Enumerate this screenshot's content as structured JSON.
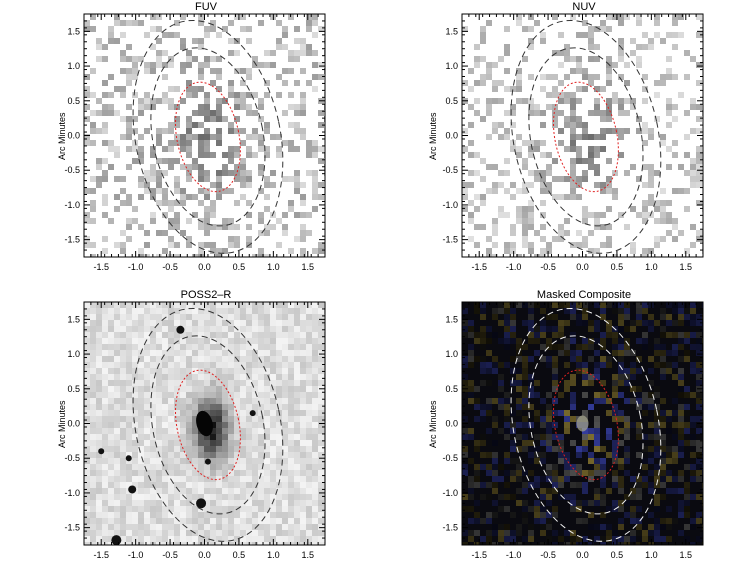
{
  "figure": {
    "panels": [
      {
        "id": "fuv",
        "title": "FUV",
        "ylabel": "Arc Minutes",
        "style": "gray",
        "density": 0.55,
        "darkness": 0.55,
        "xlim": [
          -1.75,
          1.75
        ],
        "ylim": [
          -1.75,
          1.75
        ]
      },
      {
        "id": "nuv",
        "title": "NUV",
        "ylabel": "Arc Minutes",
        "style": "gray-light",
        "density": 0.45,
        "darkness": 0.5,
        "xlim": [
          -1.75,
          1.75
        ],
        "ylim": [
          -1.75,
          1.75
        ]
      },
      {
        "id": "poss2r",
        "title": "POSS2–R",
        "ylabel": "Arc Minutes",
        "style": "optical",
        "xlim": [
          -1.75,
          1.75
        ],
        "ylim": [
          -1.75,
          1.75
        ]
      },
      {
        "id": "composite",
        "title": "Masked Composite",
        "ylabel": "Arc Minutes",
        "style": "color",
        "xlim": [
          -1.75,
          1.75
        ],
        "ylim": [
          -1.75,
          1.75
        ]
      }
    ],
    "xticks": [
      "-1.5",
      "-1.0",
      "-0.5",
      "0.0",
      "0.5",
      "1.0",
      "1.5"
    ],
    "yticks": [
      "1.5",
      "1.0",
      "0.5",
      "0.0",
      "-0.5",
      "-1.0",
      "-1.5"
    ],
    "xtick_values": [
      -1.5,
      -1.0,
      -0.5,
      0.0,
      0.5,
      1.0,
      1.5
    ],
    "ytick_values": [
      1.5,
      1.0,
      0.5,
      0.0,
      -0.5,
      -1.0,
      -1.5
    ],
    "ellipses": [
      {
        "name": "inner",
        "rx": 0.45,
        "ry": 0.8,
        "cx": 0.05,
        "cy": -0.02,
        "angle": -12,
        "color_dark": "#e02020",
        "color_light": "#e02020",
        "dash": "2,2"
      },
      {
        "name": "middle",
        "rx": 0.8,
        "ry": 1.3,
        "cx": 0.05,
        "cy": -0.02,
        "angle": -12,
        "color_dark": "#333333",
        "color_light": "#f0f0f0",
        "dash": "6,4"
      },
      {
        "name": "outer",
        "rx": 1.05,
        "ry": 1.7,
        "cx": 0.05,
        "cy": -0.02,
        "angle": -12,
        "color_dark": "#333333",
        "color_light": "#f0f0f0",
        "dash": "6,4"
      }
    ]
  }
}
